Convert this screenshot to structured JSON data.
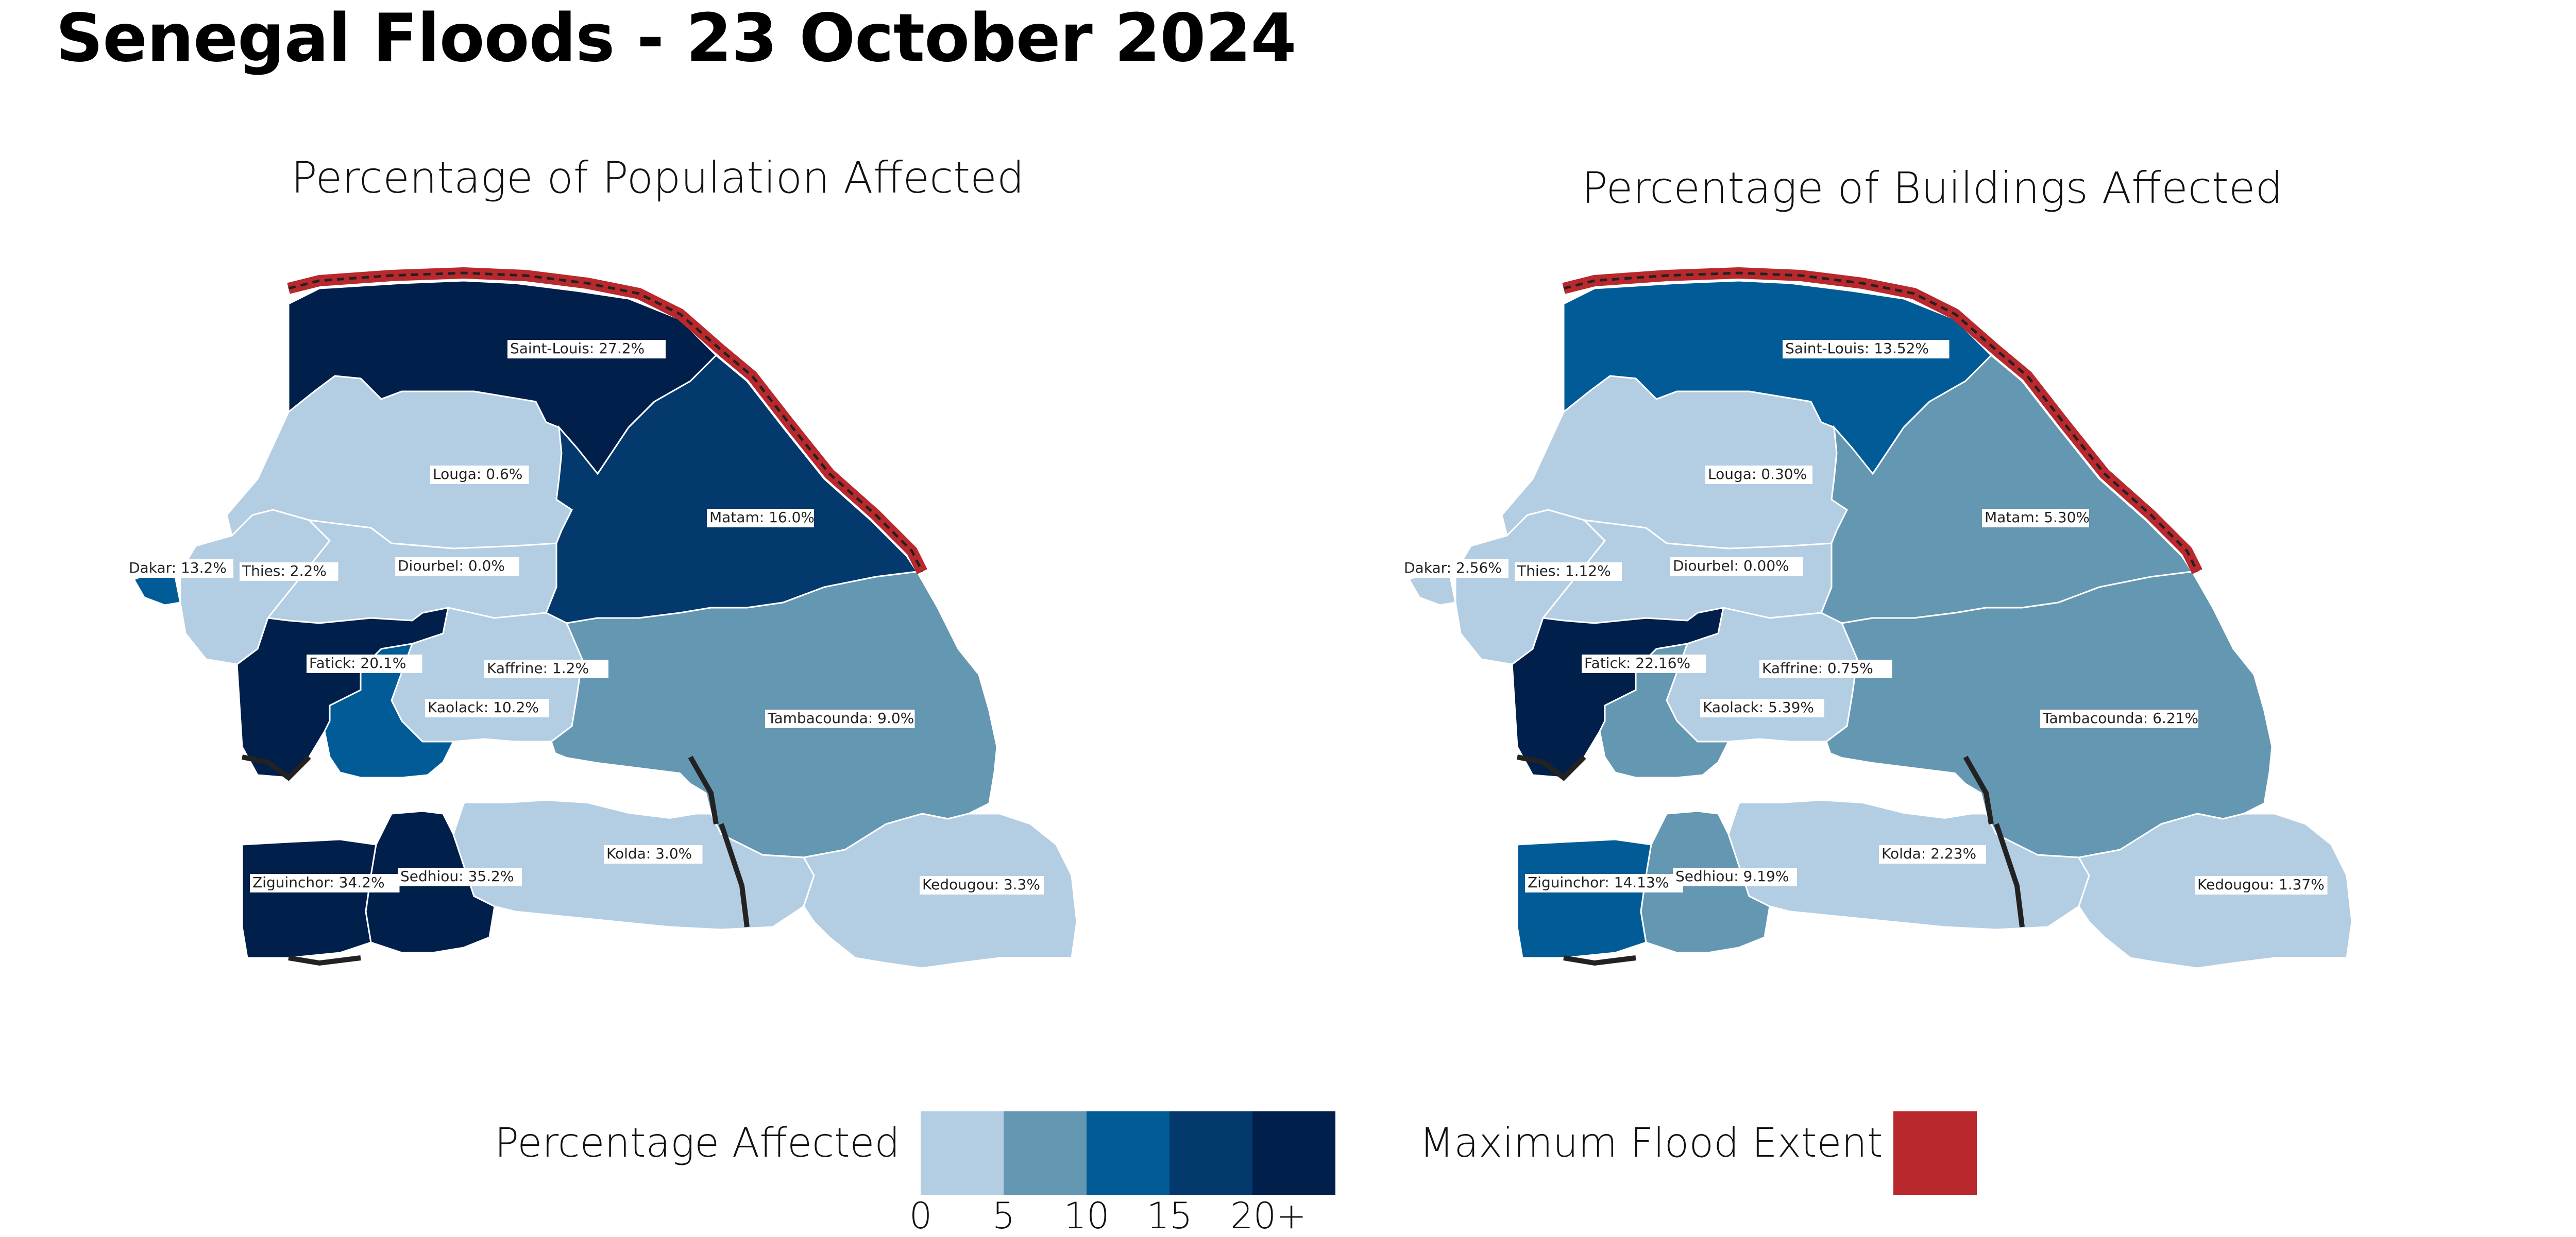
{
  "title": "Senegal Floods - 23 October 2024",
  "panels": [
    {
      "title": "Percentage of Population Affected",
      "labels": {
        "saint_louis": "Saint-Louis: 27.2%",
        "louga": "Louga: 0.6%",
        "matam": "Matam: 16.0%",
        "dakar": "Dakar: 13.2%",
        "thies": "Thies: 2.2%",
        "diourbel": "Diourbel: 0.0%",
        "fatick": "Fatick: 20.1%",
        "kaffrine": "Kaffrine: 1.2%",
        "kaolack": "Kaolack: 10.2%",
        "tambacounda": "Tambacounda: 9.0%",
        "ziguinchor": "Ziguinchor: 34.2%",
        "sedhiou": "Sedhiou: 35.2%",
        "kolda": "Kolda: 3.0%",
        "kedougou": "Kedougou: 3.3%"
      },
      "values": {
        "saint_louis": 27.2,
        "louga": 0.6,
        "matam": 16.0,
        "dakar": 13.2,
        "thies": 2.2,
        "diourbel": 0.0,
        "fatick": 20.1,
        "kaffrine": 1.2,
        "kaolack": 10.2,
        "tambacounda": 9.0,
        "ziguinchor": 34.2,
        "sedhiou": 35.2,
        "kolda": 3.0,
        "kedougou": 3.3
      }
    },
    {
      "title": "Percentage of Buildings Affected",
      "labels": {
        "saint_louis": "Saint-Louis: 13.52%",
        "louga": "Louga: 0.30%",
        "matam": "Matam: 5.30%",
        "dakar": "Dakar: 2.56%",
        "thies": "Thies: 1.12%",
        "diourbel": "Diourbel: 0.00%",
        "fatick": "Fatick: 22.16%",
        "kaffrine": "Kaffrine: 0.75%",
        "kaolack": "Kaolack: 5.39%",
        "tambacounda": "Tambacounda: 6.21%",
        "ziguinchor": "Ziguinchor: 14.13%",
        "sedhiou": "Sedhiou: 9.19%",
        "kolda": "Kolda: 2.23%",
        "kedougou": "Kedougou: 1.37%"
      },
      "values": {
        "saint_louis": 13.52,
        "louga": 0.3,
        "matam": 5.3,
        "dakar": 2.56,
        "thies": 1.12,
        "diourbel": 0.0,
        "fatick": 22.16,
        "kaffrine": 0.75,
        "kaolack": 5.39,
        "tambacounda": 6.21,
        "ziguinchor": 14.13,
        "sedhiou": 9.19,
        "kolda": 2.23,
        "kedougou": 1.37
      }
    }
  ],
  "legend": {
    "label": "Percentage Affected",
    "colors": [
      "#b3cde3",
      "#6497b1",
      "#005b96",
      "#03396c",
      "#011f4b"
    ],
    "ticks": [
      "0",
      "5",
      "10",
      "15",
      "20+"
    ],
    "flood_label": "Maximum Flood Extent",
    "flood_color": "#b8282c"
  }
}
